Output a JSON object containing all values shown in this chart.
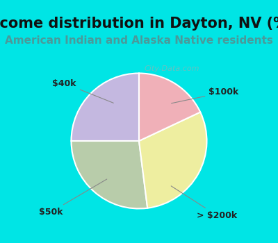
{
  "title": "Income distribution in Dayton, NV (%)",
  "subtitle": "American Indian and Alaska Native residents",
  "slices": [
    {
      "label": "$100k",
      "value": 25,
      "color": "#c4b8e0"
    },
    {
      "label": "> $200k",
      "value": 27,
      "color": "#b8ccaa"
    },
    {
      "label": "$50k",
      "value": 30,
      "color": "#eeeea0"
    },
    {
      "label": "$40k",
      "value": 18,
      "color": "#f0b0b8"
    }
  ],
  "background_color": "#00e5e5",
  "chart_bg_color": "#ffffff",
  "title_fontsize": 15,
  "subtitle_fontsize": 11,
  "subtitle_color": "#4a9a9a",
  "label_fontsize": 9,
  "watermark": "City-Data.com",
  "startangle": 90,
  "arrow_color": "#ccaaaa"
}
